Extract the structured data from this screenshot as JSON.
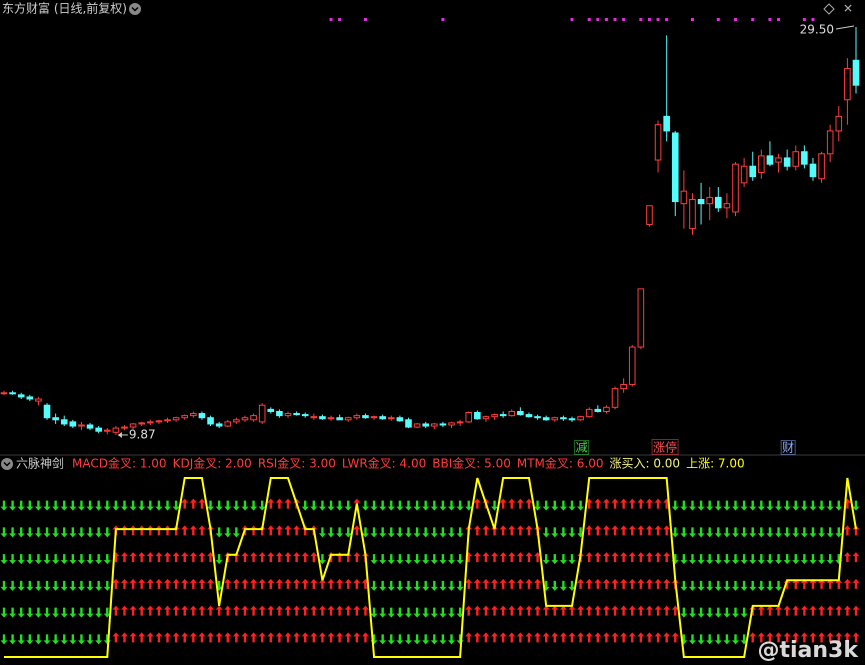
{
  "header": {
    "title": "东方财富 (日线,前复权)"
  },
  "chart_data": [
    {
      "type": "candlestick",
      "open": [
        11.9,
        11.9,
        11.8,
        11.7,
        11.5,
        11.3,
        10.7,
        10.6,
        10.5,
        10.3,
        10.35,
        10.2,
        10.05,
        10.0,
        10.2,
        10.25,
        10.4,
        10.45,
        10.5,
        10.55,
        10.6,
        10.7,
        10.8,
        10.9,
        10.7,
        10.4,
        10.3,
        10.5,
        10.6,
        10.6,
        10.5,
        11.1,
        11.0,
        10.8,
        10.9,
        10.85,
        10.7,
        10.75,
        10.65,
        10.7,
        10.6,
        10.7,
        10.8,
        10.7,
        10.75,
        10.65,
        10.7,
        10.6,
        10.25,
        10.4,
        10.3,
        10.4,
        10.35,
        10.45,
        10.5,
        10.95,
        10.65,
        10.75,
        10.85,
        10.8,
        11.0,
        10.85,
        10.75,
        10.7,
        10.6,
        10.7,
        10.65,
        10.6,
        10.75,
        11.1,
        11.0,
        11.2,
        12.1,
        12.3,
        14.1,
        20.0,
        23.1,
        25.2,
        24.4,
        21.0,
        19.8,
        21.2,
        21.0,
        21.3,
        20.8,
        20.6,
        22.0,
        22.8,
        22.5,
        23.3,
        23.0,
        23.2,
        22.8,
        23.5,
        22.9,
        22.2,
        23.4,
        24.5,
        26.0,
        27.9
      ],
      "high": [
        12.0,
        12.0,
        11.9,
        11.8,
        11.7,
        11.4,
        10.9,
        10.8,
        10.6,
        10.5,
        10.45,
        10.3,
        10.2,
        10.3,
        10.35,
        10.45,
        10.5,
        10.6,
        10.6,
        10.7,
        10.75,
        10.85,
        11.0,
        11.0,
        10.8,
        10.5,
        10.6,
        10.7,
        10.8,
        10.9,
        11.4,
        11.2,
        11.1,
        11.0,
        11.0,
        10.95,
        10.9,
        10.85,
        10.8,
        10.85,
        10.75,
        10.9,
        10.9,
        10.8,
        10.85,
        10.8,
        10.8,
        10.7,
        10.45,
        10.5,
        10.45,
        10.5,
        10.5,
        10.6,
        11.0,
        11.05,
        10.8,
        10.9,
        11.0,
        11.1,
        11.2,
        10.95,
        10.85,
        10.8,
        10.75,
        10.8,
        10.75,
        10.8,
        11.2,
        11.3,
        11.3,
        12.2,
        12.6,
        14.2,
        16.9,
        20.9,
        25.0,
        29.1,
        24.5,
        22.6,
        21.5,
        22.0,
        21.8,
        21.8,
        21.5,
        23.0,
        23.2,
        23.5,
        23.6,
        24.0,
        23.4,
        23.6,
        23.8,
        23.8,
        23.2,
        23.5,
        24.8,
        25.7,
        28.0,
        29.5
      ],
      "low": [
        11.8,
        11.8,
        11.6,
        11.5,
        11.3,
        10.6,
        10.4,
        10.3,
        10.2,
        10.1,
        10.1,
        9.95,
        9.9,
        9.87,
        10.1,
        10.15,
        10.3,
        10.35,
        10.4,
        10.45,
        10.5,
        10.6,
        10.7,
        10.6,
        10.3,
        10.2,
        10.25,
        10.4,
        10.5,
        10.5,
        10.4,
        10.9,
        10.7,
        10.7,
        10.8,
        10.7,
        10.6,
        10.6,
        10.55,
        10.6,
        10.5,
        10.6,
        10.65,
        10.6,
        10.6,
        10.55,
        10.5,
        10.2,
        10.2,
        10.2,
        10.15,
        10.25,
        10.2,
        10.3,
        10.45,
        10.6,
        10.5,
        10.6,
        10.7,
        10.75,
        10.8,
        10.7,
        10.6,
        10.55,
        10.5,
        10.55,
        10.5,
        10.55,
        10.7,
        10.95,
        10.9,
        11.1,
        11.9,
        12.2,
        14.0,
        19.9,
        22.5,
        24.0,
        20.4,
        19.8,
        19.5,
        20.0,
        20.2,
        20.6,
        20.3,
        20.4,
        21.8,
        22.1,
        22.2,
        22.8,
        22.5,
        22.6,
        22.6,
        22.7,
        22.1,
        22.0,
        23.0,
        24.0,
        24.8,
        26.3
      ],
      "close": [
        11.9,
        11.85,
        11.7,
        11.6,
        11.6,
        10.7,
        10.6,
        10.4,
        10.3,
        10.35,
        10.2,
        10.05,
        10.1,
        10.2,
        10.25,
        10.4,
        10.45,
        10.5,
        10.55,
        10.6,
        10.7,
        10.8,
        10.9,
        10.7,
        10.4,
        10.3,
        10.5,
        10.6,
        10.7,
        10.8,
        11.3,
        11.0,
        10.8,
        10.9,
        10.85,
        10.8,
        10.75,
        10.65,
        10.7,
        10.6,
        10.7,
        10.8,
        10.7,
        10.75,
        10.65,
        10.7,
        10.55,
        10.25,
        10.4,
        10.3,
        10.4,
        10.35,
        10.45,
        10.5,
        10.95,
        10.65,
        10.75,
        10.85,
        10.8,
        11.0,
        10.85,
        10.75,
        10.7,
        10.6,
        10.7,
        10.65,
        10.6,
        10.75,
        11.1,
        11.0,
        11.2,
        12.1,
        12.3,
        14.1,
        16.9,
        20.9,
        24.8,
        24.5,
        21.1,
        21.6,
        21.2,
        21.0,
        21.3,
        20.8,
        21.0,
        22.9,
        22.8,
        22.3,
        23.3,
        22.9,
        23.2,
        22.8,
        23.5,
        22.9,
        22.3,
        23.4,
        24.5,
        25.2,
        27.5,
        26.7
      ],
      "ylim": [
        9.05,
        30.8
      ],
      "up_color": "#ff3c3c",
      "down_color": "#54fcfc",
      "top_signals": [
        38,
        39,
        42,
        51,
        66,
        68,
        69,
        70,
        71,
        72,
        74,
        75,
        76,
        77,
        80,
        83,
        85,
        87,
        89,
        90,
        93,
        94
      ],
      "top_signal_color": "#e030e0",
      "extremes": [
        {
          "bar": 99,
          "value": 29.5,
          "label": "29.50"
        },
        {
          "bar": 13,
          "value": 9.87,
          "label": "9.87"
        }
      ],
      "annotations": [
        {
          "bar": 67,
          "text": "减",
          "color": "#44d844"
        },
        {
          "bar": 76,
          "text": "涨停",
          "color": "#ff5050"
        },
        {
          "bar": 91,
          "text": "财",
          "color": "#8ab0ff"
        }
      ]
    },
    {
      "type": "signal",
      "title": "六脉神剑",
      "legend": [
        {
          "text": "MACD金叉: 1.00",
          "color": "#ff3c3c"
        },
        {
          "text": "KDJ金叉: 2.00",
          "color": "#ff3c3c"
        },
        {
          "text": "RSI金叉: 3.00",
          "color": "#ff3c3c"
        },
        {
          "text": "LWR金叉: 4.00",
          "color": "#ff3c3c"
        },
        {
          "text": "BBI金叉: 5.00",
          "color": "#ff3c3c"
        },
        {
          "text": "MTM金叉: 6.00",
          "color": "#ff3c3c"
        },
        {
          "text": "涨买入: 0.00",
          "color": "#f0f080"
        },
        {
          "text": "上涨: 7.00",
          "color": "#ffff00"
        }
      ],
      "values": [
        0,
        0,
        0,
        0,
        0,
        0,
        0,
        0,
        0,
        0,
        0,
        0,
        0,
        5,
        5,
        5,
        5,
        5,
        5,
        5,
        5,
        7,
        7,
        7,
        5,
        2,
        4,
        4,
        5,
        5,
        5,
        7,
        7,
        7,
        6,
        5,
        5,
        3,
        4,
        4,
        4,
        6,
        4,
        0,
        0,
        0,
        0,
        0,
        0,
        0,
        0,
        0,
        0,
        0,
        5,
        7,
        6,
        5,
        7,
        7,
        7,
        7,
        5,
        2,
        2,
        2,
        2,
        4,
        7,
        7,
        7,
        7,
        7,
        7,
        7,
        7,
        7,
        7,
        3,
        0,
        0,
        0,
        0,
        0,
        0,
        0,
        0,
        2,
        2,
        2,
        2,
        3,
        3,
        3,
        3,
        3,
        3,
        3,
        7,
        5
      ],
      "ylim": [
        0,
        7
      ],
      "up_color": "#ff2020",
      "down_color": "#22dd22",
      "line_color": "#ffff00"
    }
  ],
  "watermark": "@tian3k"
}
